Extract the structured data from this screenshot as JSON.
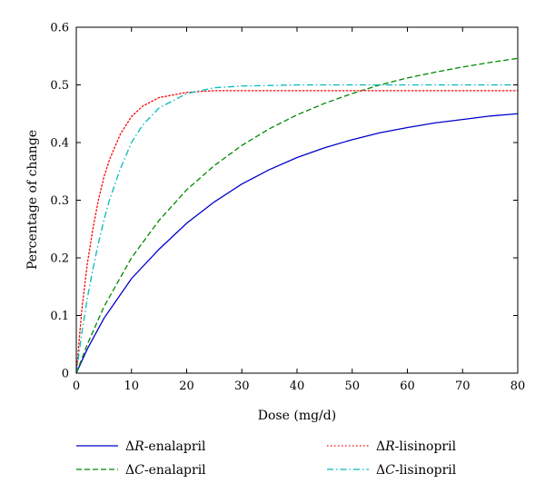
{
  "chart_data": {
    "type": "line",
    "title": "",
    "xlabel": "Dose (mg/d)",
    "ylabel": "Percentage of change",
    "xlim": [
      0,
      80
    ],
    "ylim": [
      0,
      0.6
    ],
    "xticks": [
      "0",
      "10",
      "20",
      "30",
      "40",
      "50",
      "60",
      "70",
      "80"
    ],
    "yticks": [
      "0",
      "0.1",
      "0.2",
      "0.3",
      "0.4",
      "0.5",
      "0.6"
    ],
    "grid": false,
    "legend_position": "bottom",
    "series": [
      {
        "name": "ΔR-enalapril",
        "name_prefix": "Δ",
        "name_italic": "R",
        "name_suffix": "-enalapril",
        "color": "#0000cc",
        "style": "solid",
        "x": [
          0,
          2,
          5,
          10,
          15,
          20,
          25,
          30,
          35,
          40,
          45,
          50,
          55,
          60,
          65,
          70,
          75,
          80
        ],
        "y": [
          0,
          0.042,
          0.095,
          0.164,
          0.215,
          0.26,
          0.297,
          0.328,
          0.353,
          0.374,
          0.391,
          0.405,
          0.417,
          0.426,
          0.434,
          0.44,
          0.446,
          0.45
        ]
      },
      {
        "name": "ΔC-enalapril",
        "name_prefix": "Δ",
        "name_italic": "C",
        "name_suffix": "-enalapril",
        "color": "#008800",
        "style": "dashed",
        "x": [
          0,
          2,
          5,
          10,
          15,
          20,
          25,
          30,
          35,
          40,
          45,
          50,
          55,
          60,
          65,
          70,
          75,
          80
        ],
        "y": [
          0,
          0.05,
          0.115,
          0.2,
          0.265,
          0.318,
          0.36,
          0.395,
          0.424,
          0.448,
          0.468,
          0.485,
          0.5,
          0.512,
          0.522,
          0.531,
          0.539,
          0.546
        ]
      },
      {
        "name": "ΔR-lisinopril",
        "name_prefix": "Δ",
        "name_italic": "R",
        "name_suffix": "-lisinopril",
        "color": "#ff0000",
        "style": "dotted",
        "x": [
          0,
          1,
          2,
          3,
          4,
          5,
          6,
          8,
          10,
          12,
          15,
          20,
          25,
          30,
          40,
          50,
          60,
          70,
          80
        ],
        "y": [
          0,
          0.11,
          0.19,
          0.25,
          0.3,
          0.34,
          0.37,
          0.415,
          0.445,
          0.463,
          0.478,
          0.487,
          0.49,
          0.49,
          0.49,
          0.49,
          0.49,
          0.49,
          0.49
        ]
      },
      {
        "name": "ΔC-lisinopril",
        "name_prefix": "Δ",
        "name_italic": "C",
        "name_suffix": "-lisinopril",
        "color": "#00bbbb",
        "style": "dashdot",
        "x": [
          0,
          1,
          2,
          3,
          4,
          5,
          6,
          8,
          10,
          12,
          15,
          20,
          25,
          30,
          40,
          50,
          60,
          70,
          80
        ],
        "y": [
          0,
          0.07,
          0.13,
          0.18,
          0.225,
          0.265,
          0.3,
          0.355,
          0.4,
          0.43,
          0.46,
          0.485,
          0.495,
          0.498,
          0.5,
          0.5,
          0.5,
          0.5,
          0.5
        ]
      }
    ]
  }
}
